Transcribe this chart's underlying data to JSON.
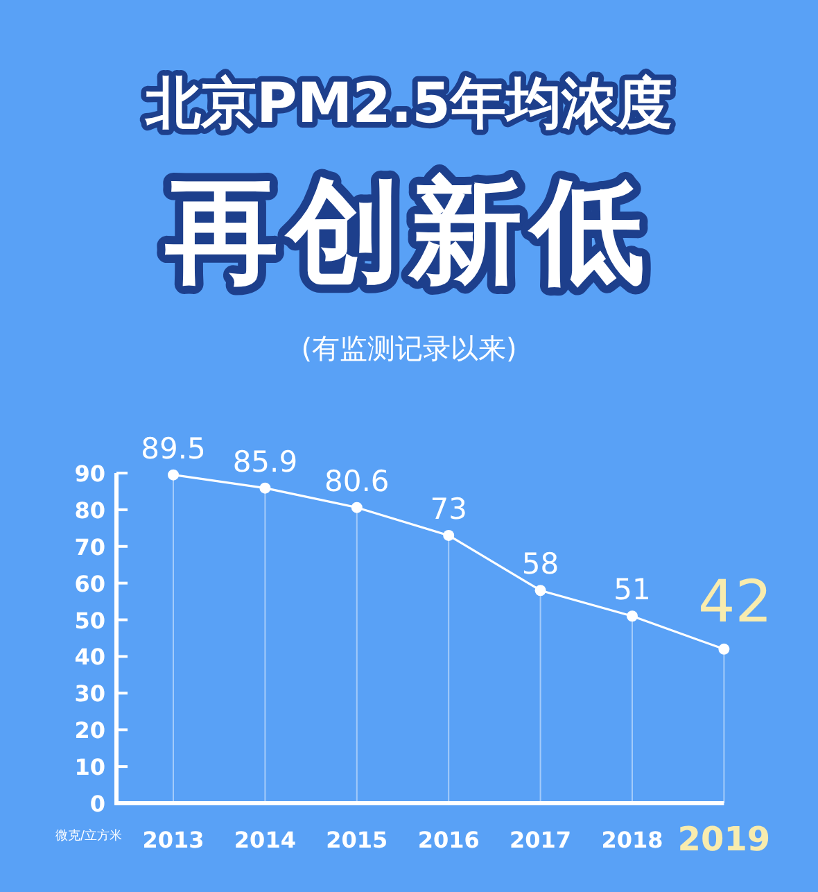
{
  "chart_data": {
    "type": "line",
    "title": "北京PM2.5年均浓度",
    "subtitle": "再创新低",
    "annotations": [
      "(有监测记录以来)"
    ],
    "ylabel": "微克/立方米",
    "categories": [
      "2013",
      "2014",
      "2015",
      "2016",
      "2017",
      "2018",
      "2019"
    ],
    "values": [
      89.5,
      85.9,
      80.6,
      73,
      58,
      51,
      42
    ],
    "color": "#ffffff",
    "ylim": [
      0,
      90
    ],
    "yticks": [
      0,
      10,
      20,
      30,
      40,
      50,
      60,
      70,
      80,
      90
    ],
    "grid": "x",
    "marker": "circle",
    "data_labels": true
  }
}
